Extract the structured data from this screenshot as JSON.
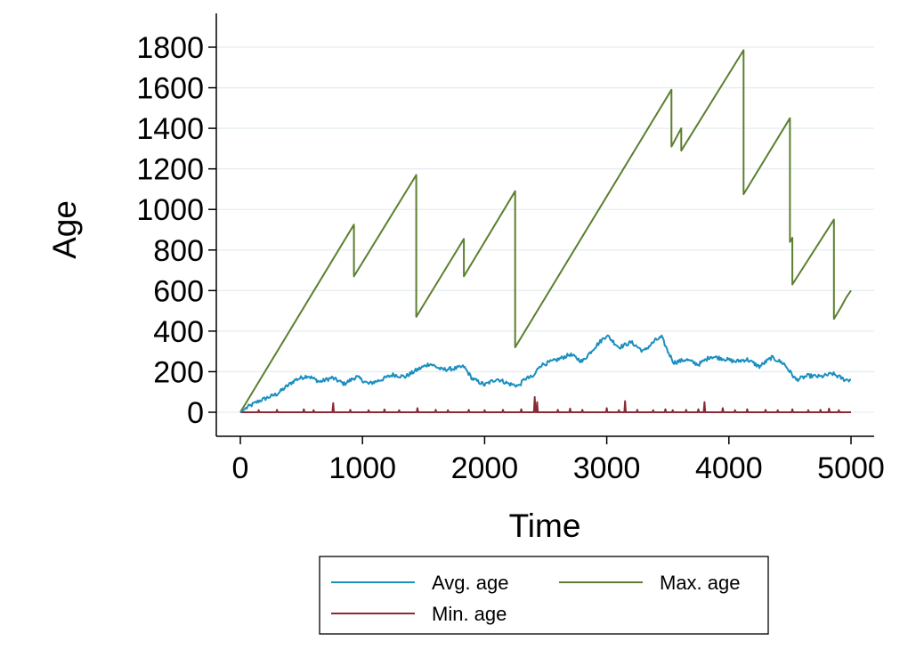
{
  "chart_data": {
    "type": "line",
    "title": "",
    "xlabel": "Time",
    "ylabel": "Age",
    "xlim": [
      -200,
      5200
    ],
    "ylim": [
      -120,
      1850
    ],
    "x_ticks": [
      0,
      1000,
      2000,
      3000,
      4000,
      5000
    ],
    "y_ticks": [
      0,
      200,
      400,
      600,
      800,
      1000,
      1200,
      1400,
      1600,
      1800
    ],
    "grid": true,
    "legend_position": "bottom",
    "series": [
      {
        "name": "Avg. age",
        "color": "#1a8fc0",
        "noise": 10,
        "points": [
          [
            0,
            0
          ],
          [
            60,
            25
          ],
          [
            150,
            55
          ],
          [
            300,
            90
          ],
          [
            450,
            160
          ],
          [
            550,
            180
          ],
          [
            650,
            150
          ],
          [
            750,
            170
          ],
          [
            850,
            140
          ],
          [
            950,
            175
          ],
          [
            1050,
            140
          ],
          [
            1150,
            160
          ],
          [
            1250,
            185
          ],
          [
            1350,
            175
          ],
          [
            1450,
            210
          ],
          [
            1550,
            240
          ],
          [
            1650,
            210
          ],
          [
            1750,
            215
          ],
          [
            1830,
            225
          ],
          [
            1900,
            165
          ],
          [
            2000,
            135
          ],
          [
            2100,
            165
          ],
          [
            2200,
            140
          ],
          [
            2280,
            130
          ],
          [
            2330,
            165
          ],
          [
            2400,
            175
          ],
          [
            2450,
            230
          ],
          [
            2500,
            240
          ],
          [
            2600,
            260
          ],
          [
            2700,
            285
          ],
          [
            2800,
            250
          ],
          [
            2900,
            320
          ],
          [
            3000,
            380
          ],
          [
            3100,
            320
          ],
          [
            3200,
            345
          ],
          [
            3300,
            300
          ],
          [
            3400,
            355
          ],
          [
            3450,
            370
          ],
          [
            3500,
            300
          ],
          [
            3550,
            245
          ],
          [
            3650,
            260
          ],
          [
            3750,
            235
          ],
          [
            3850,
            275
          ],
          [
            3950,
            265
          ],
          [
            4050,
            250
          ],
          [
            4150,
            260
          ],
          [
            4250,
            225
          ],
          [
            4350,
            270
          ],
          [
            4450,
            240
          ],
          [
            4550,
            160
          ],
          [
            4650,
            180
          ],
          [
            4750,
            175
          ],
          [
            4850,
            190
          ],
          [
            4950,
            160
          ],
          [
            5000,
            160
          ]
        ]
      },
      {
        "name": "Max. age",
        "color": "#5c7f2f",
        "noise": 0,
        "points": [
          [
            0,
            0
          ],
          [
            930,
            925
          ],
          [
            930,
            670
          ],
          [
            1440,
            1170
          ],
          [
            1440,
            470
          ],
          [
            1830,
            855
          ],
          [
            1830,
            670
          ],
          [
            2250,
            1090
          ],
          [
            2250,
            320
          ],
          [
            3530,
            1590
          ],
          [
            3530,
            1310
          ],
          [
            3610,
            1400
          ],
          [
            3610,
            1290
          ],
          [
            4120,
            1785
          ],
          [
            4120,
            1075
          ],
          [
            4500,
            1450
          ],
          [
            4500,
            840
          ],
          [
            4520,
            860
          ],
          [
            4520,
            630
          ],
          [
            4860,
            950
          ],
          [
            4860,
            460
          ],
          [
            4920,
            520
          ],
          [
            4960,
            565
          ],
          [
            5000,
            600
          ]
        ]
      },
      {
        "name": "Min. age",
        "color": "#8b2a35",
        "noise": 0,
        "points": [
          [
            0,
            0
          ],
          [
            5000,
            0
          ]
        ],
        "spikes": [
          [
            150,
            10
          ],
          [
            300,
            12
          ],
          [
            520,
            15
          ],
          [
            600,
            10
          ],
          [
            760,
            45
          ],
          [
            900,
            12
          ],
          [
            1050,
            10
          ],
          [
            1180,
            14
          ],
          [
            1300,
            10
          ],
          [
            1450,
            20
          ],
          [
            1600,
            12
          ],
          [
            1700,
            10
          ],
          [
            1870,
            12
          ],
          [
            2000,
            10
          ],
          [
            2150,
            12
          ],
          [
            2300,
            15
          ],
          [
            2410,
            75
          ],
          [
            2430,
            50
          ],
          [
            2600,
            12
          ],
          [
            2700,
            18
          ],
          [
            2800,
            12
          ],
          [
            3000,
            20
          ],
          [
            3100,
            10
          ],
          [
            3150,
            55
          ],
          [
            3250,
            12
          ],
          [
            3380,
            10
          ],
          [
            3480,
            15
          ],
          [
            3540,
            10
          ],
          [
            3650,
            12
          ],
          [
            3750,
            15
          ],
          [
            3800,
            50
          ],
          [
            3950,
            20
          ],
          [
            4050,
            10
          ],
          [
            4150,
            15
          ],
          [
            4300,
            12
          ],
          [
            4400,
            10
          ],
          [
            4520,
            15
          ],
          [
            4650,
            10
          ],
          [
            4750,
            12
          ],
          [
            4820,
            18
          ],
          [
            4900,
            10
          ]
        ]
      }
    ]
  }
}
